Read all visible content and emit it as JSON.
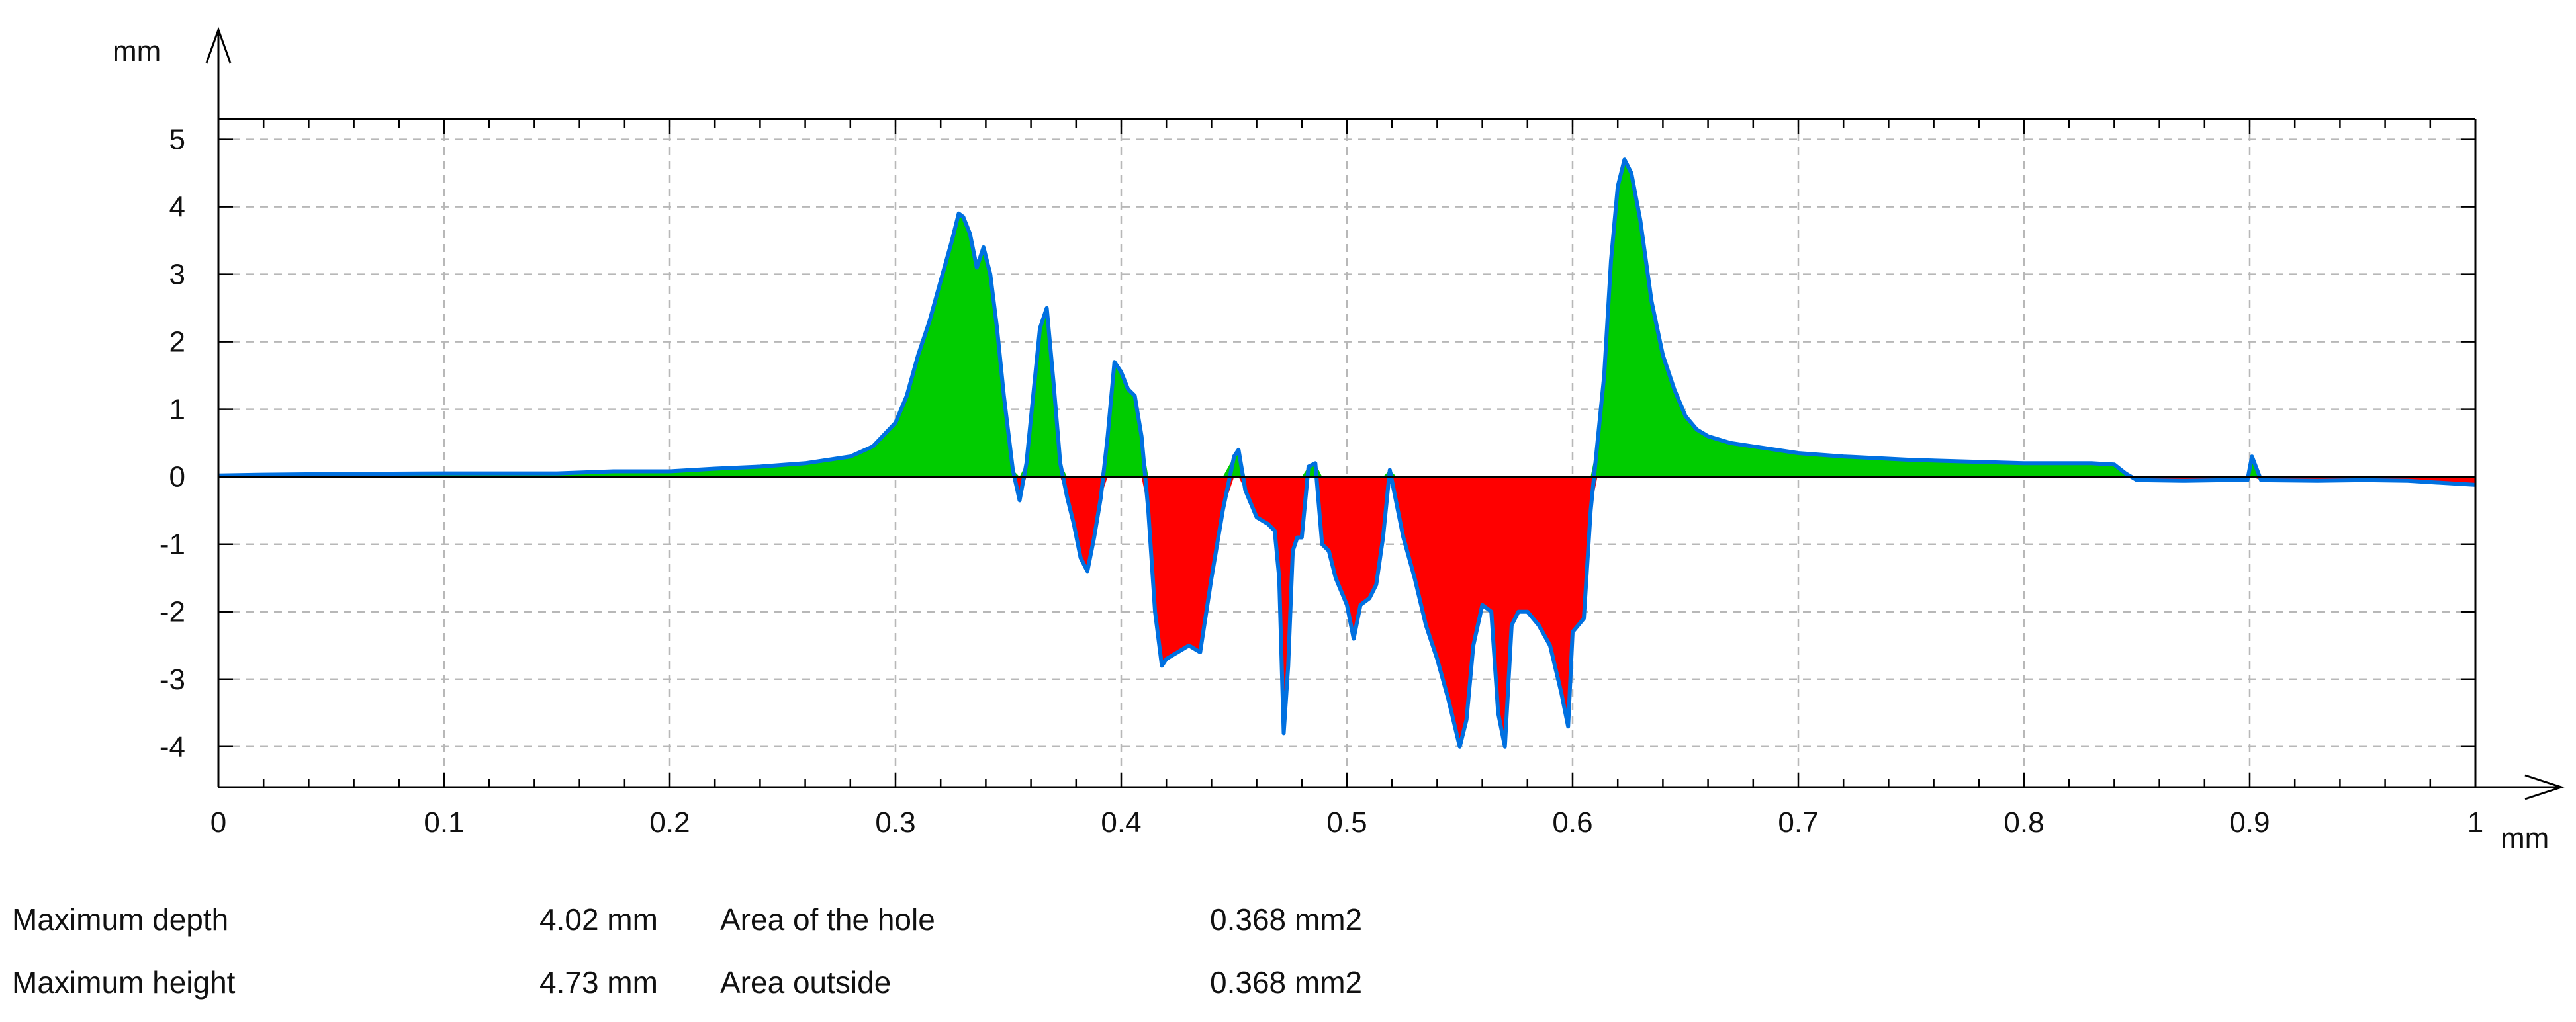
{
  "chart_data": {
    "type": "area",
    "title": "",
    "xlabel": "",
    "ylabel": "",
    "x_unit": "mm",
    "y_unit": "mm",
    "xlim": [
      0,
      1
    ],
    "ylim": [
      -4.6,
      5.3
    ],
    "x_ticks": [
      "0",
      "0.1",
      "0.2",
      "0.3",
      "0.4",
      "0.5",
      "0.6",
      "0.7",
      "0.8",
      "0.9",
      "1"
    ],
    "y_ticks": [
      "5",
      "4",
      "3",
      "2",
      "1",
      "0",
      "-1",
      "-2",
      "-3",
      "-4"
    ],
    "grid": true,
    "colors": {
      "above": "#00cc00",
      "below": "#ff0000",
      "outline": "#0070e0",
      "baseline": "#000000"
    },
    "series": [
      {
        "x": [
          0,
          0.02,
          0.05,
          0.1,
          0.15,
          0.175,
          0.2,
          0.22,
          0.24,
          0.26,
          0.28,
          0.29,
          0.3,
          0.305,
          0.31,
          0.315,
          0.32,
          0.325,
          0.328,
          0.33,
          0.333,
          0.336,
          0.339,
          0.342,
          0.345,
          0.348,
          0.352,
          0.355,
          0.358,
          0.361,
          0.364,
          0.367,
          0.37,
          0.373,
          0.376,
          0.379,
          0.382,
          0.385,
          0.388,
          0.391,
          0.394,
          0.397,
          0.4,
          0.403,
          0.406,
          0.409,
          0.412,
          0.415,
          0.418,
          0.42,
          0.425,
          0.43,
          0.435,
          0.44,
          0.445,
          0.45,
          0.452,
          0.455,
          0.46,
          0.465,
          0.468,
          0.47,
          0.472,
          0.474,
          0.476,
          0.478,
          0.48,
          0.483,
          0.486,
          0.489,
          0.492,
          0.495,
          0.5,
          0.503,
          0.506,
          0.51,
          0.513,
          0.516,
          0.519,
          0.522,
          0.525,
          0.53,
          0.535,
          0.54,
          0.545,
          0.55,
          0.553,
          0.556,
          0.56,
          0.564,
          0.567,
          0.57,
          0.573,
          0.576,
          0.58,
          0.585,
          0.59,
          0.595,
          0.598,
          0.6,
          0.605,
          0.608,
          0.611,
          0.614,
          0.617,
          0.62,
          0.623,
          0.626,
          0.63,
          0.635,
          0.64,
          0.645,
          0.65,
          0.655,
          0.66,
          0.67,
          0.68,
          0.7,
          0.72,
          0.75,
          0.8,
          0.83,
          0.84,
          0.845,
          0.85,
          0.87,
          0.89,
          0.899,
          0.901,
          0.905,
          0.93,
          0.95,
          0.97,
          0.99,
          1.0
        ],
        "y": [
          0.02,
          0.03,
          0.04,
          0.05,
          0.05,
          0.08,
          0.08,
          0.12,
          0.15,
          0.2,
          0.3,
          0.45,
          0.8,
          1.2,
          1.8,
          2.3,
          2.9,
          3.5,
          3.9,
          3.85,
          3.6,
          3.1,
          3.4,
          3.0,
          2.2,
          1.2,
          0.1,
          -0.35,
          0.2,
          1.2,
          2.2,
          2.5,
          1.4,
          0.2,
          -0.3,
          -0.7,
          -1.2,
          -1.4,
          -0.9,
          -0.3,
          0.6,
          1.7,
          1.55,
          1.3,
          1.2,
          0.6,
          -0.5,
          -2.0,
          -2.8,
          -2.7,
          -2.6,
          -2.5,
          -2.6,
          -1.5,
          -0.5,
          0.3,
          0.4,
          -0.2,
          -0.6,
          -0.7,
          -0.8,
          -1.5,
          -3.8,
          -2.8,
          -1.1,
          -0.9,
          -0.9,
          0.15,
          0.2,
          -1.0,
          -1.1,
          -1.5,
          -1.9,
          -2.4,
          -1.9,
          -1.8,
          -1.6,
          -0.9,
          0.1,
          -0.4,
          -0.9,
          -1.5,
          -2.2,
          -2.7,
          -3.3,
          -4.0,
          -3.6,
          -2.5,
          -1.9,
          -2.0,
          -3.5,
          -4.0,
          -2.2,
          -2.0,
          -2.0,
          -2.2,
          -2.5,
          -3.2,
          -3.7,
          -2.3,
          -2.1,
          -0.5,
          0.5,
          1.5,
          3.2,
          4.3,
          4.7,
          4.5,
          3.8,
          2.6,
          1.8,
          1.3,
          0.9,
          0.7,
          0.6,
          0.5,
          0.45,
          0.35,
          0.3,
          0.25,
          0.2,
          0.2,
          0.18,
          0.05,
          -0.05,
          -0.06,
          -0.05,
          -0.05,
          0.3,
          -0.05,
          -0.06,
          -0.05,
          -0.06,
          -0.1,
          -0.12
        ]
      }
    ]
  },
  "stats": {
    "max_depth_label": "Maximum depth",
    "max_depth_value": "4.02 mm",
    "max_height_label": "Maximum height",
    "max_height_value": "4.73 mm",
    "hole_area_label": "Area of the hole",
    "hole_area_value": "0.368 mm2",
    "outside_area_label": "Area outside",
    "outside_area_value": "0.368 mm2"
  }
}
